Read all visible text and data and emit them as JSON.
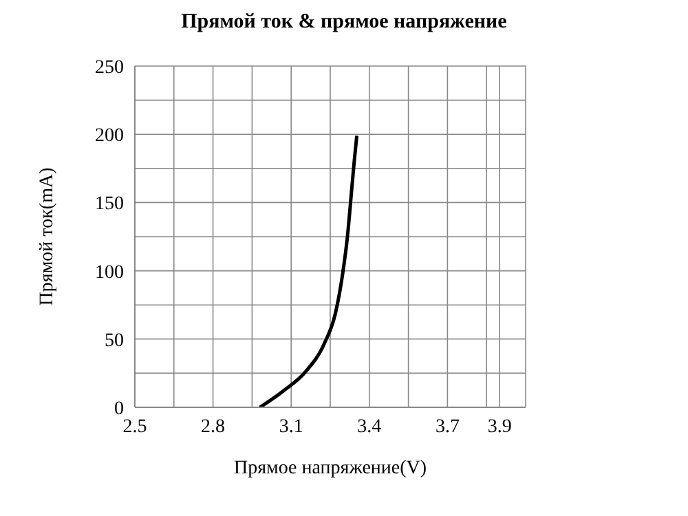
{
  "chart_data": {
    "type": "line",
    "title": "Прямой ток & прямое напряжение",
    "xlabel": "Прямое напряжение(V)",
    "ylabel": "Прямой ток(mA)",
    "x": [
      2.98,
      3.07,
      3.155,
      3.228,
      3.27,
      3.297,
      3.316,
      3.333,
      3.343,
      3.352
    ],
    "series": [
      {
        "color": "#000000",
        "values": [
          0,
          12,
          26,
          47,
          69,
          97,
          125,
          161,
          182,
          199
        ]
      }
    ],
    "xlim": [
      2.5,
      4.0
    ],
    "xticks": [
      2.5,
      {
        "value": 2.65,
        "label": null
      },
      2.8,
      {
        "value": 2.95,
        "label": null
      },
      3.1,
      {
        "value": 3.25,
        "label": null
      },
      3.4,
      {
        "value": 3.55,
        "label": null
      },
      3.7,
      {
        "value": 3.85,
        "label": null
      },
      3.9,
      {
        "value": 4.0,
        "label": null
      }
    ],
    "ylim": [
      0,
      250
    ],
    "yticks": [
      0,
      {
        "value": 25,
        "label": null
      },
      50,
      {
        "value": 75,
        "label": null
      },
      100,
      {
        "value": 125,
        "label": null
      },
      150,
      {
        "value": 175,
        "label": null
      },
      200,
      {
        "value": 225,
        "label": null
      },
      250
    ],
    "grid": true,
    "marker": "none",
    "line_style": "solid"
  }
}
